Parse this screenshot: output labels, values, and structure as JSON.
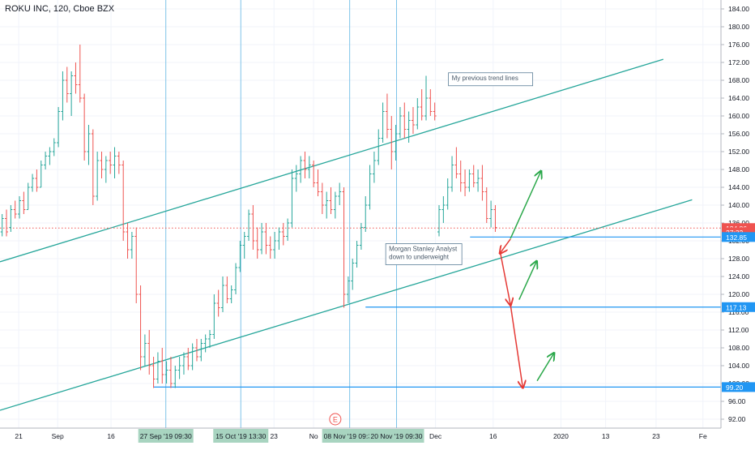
{
  "chart_data": {
    "type": "candlestick",
    "title": "ROKU INC, 120, Cboe BZX",
    "y_range": [
      90,
      186
    ],
    "y_ticks": [
      92,
      96,
      100,
      104,
      108,
      112,
      116,
      120,
      124,
      128,
      132,
      136,
      140,
      144,
      148,
      152,
      156,
      160,
      164,
      168,
      172,
      176,
      180,
      184
    ],
    "x_range": [
      0,
      100
    ],
    "x_labels": [
      {
        "x": 2.6,
        "label": "21"
      },
      {
        "x": 8.0,
        "label": "Sep"
      },
      {
        "x": 15.4,
        "label": "16"
      },
      {
        "x": 38.0,
        "label": "23"
      },
      {
        "x": 43.5,
        "label": "No"
      },
      {
        "x": 60.4,
        "label": "Dec"
      },
      {
        "x": 68.4,
        "label": "16"
      },
      {
        "x": 77.8,
        "label": "2020"
      },
      {
        "x": 84.0,
        "label": "13"
      },
      {
        "x": 91.0,
        "label": "23"
      },
      {
        "x": 97.5,
        "label": "Fe"
      }
    ],
    "highlighted_dates": [
      {
        "x": 23.0,
        "label": "27 Sep '19   09:30"
      },
      {
        "x": 33.4,
        "label": "15 Oct '19   13:30"
      },
      {
        "x": 48.5,
        "label": "08 Nov '19  09:30"
      },
      {
        "x": 55.0,
        "label": "20 Nov '19   09:30"
      }
    ],
    "price_badges": [
      {
        "price": 134.86,
        "label": "134.86",
        "color": "#ef5350"
      },
      {
        "price": 133.9,
        "label": "27:32",
        "color": "#ef5350"
      },
      {
        "price": 132.85,
        "label": "132.85",
        "color": "#2196f3"
      },
      {
        "price": 117.13,
        "label": "117.13",
        "color": "#2196f3"
      },
      {
        "price": 99.2,
        "label": "99.20",
        "color": "#2196f3"
      }
    ],
    "candles": [
      {
        "x": 0.3,
        "o": 134,
        "h": 138,
        "l": 133,
        "c": 137
      },
      {
        "x": 0.9,
        "o": 137,
        "h": 139,
        "l": 133,
        "c": 134
      },
      {
        "x": 1.5,
        "o": 135,
        "h": 140,
        "l": 134,
        "c": 139
      },
      {
        "x": 2.1,
        "o": 139,
        "h": 141,
        "l": 137,
        "c": 138
      },
      {
        "x": 2.7,
        "o": 138,
        "h": 142,
        "l": 137,
        "c": 141
      },
      {
        "x": 3.3,
        "o": 141,
        "h": 143,
        "l": 138,
        "c": 139
      },
      {
        "x": 3.9,
        "o": 139,
        "h": 145,
        "l": 139,
        "c": 144
      },
      {
        "x": 4.5,
        "o": 144,
        "h": 147,
        "l": 143,
        "c": 146
      },
      {
        "x": 5.1,
        "o": 146,
        "h": 148,
        "l": 143,
        "c": 144
      },
      {
        "x": 5.7,
        "o": 144,
        "h": 150,
        "l": 144,
        "c": 149
      },
      {
        "x": 6.3,
        "o": 149,
        "h": 152,
        "l": 148,
        "c": 151
      },
      {
        "x": 6.9,
        "o": 151,
        "h": 153,
        "l": 149,
        "c": 152
      },
      {
        "x": 7.5,
        "o": 152,
        "h": 155,
        "l": 151,
        "c": 154
      },
      {
        "x": 8.1,
        "o": 154,
        "h": 162,
        "l": 153,
        "c": 161
      },
      {
        "x": 8.7,
        "o": 161,
        "h": 170,
        "l": 159,
        "c": 168
      },
      {
        "x": 9.3,
        "o": 168,
        "h": 171,
        "l": 163,
        "c": 165
      },
      {
        "x": 9.9,
        "o": 165,
        "h": 170,
        "l": 160,
        "c": 169
      },
      {
        "x": 10.5,
        "o": 169,
        "h": 172,
        "l": 165,
        "c": 167
      },
      {
        "x": 11.1,
        "o": 167,
        "h": 176,
        "l": 163,
        "c": 164
      },
      {
        "x": 11.7,
        "o": 164,
        "h": 165,
        "l": 150,
        "c": 152
      },
      {
        "x": 12.3,
        "o": 152,
        "h": 158,
        "l": 149,
        "c": 156
      },
      {
        "x": 12.9,
        "o": 156,
        "h": 157,
        "l": 140,
        "c": 142
      },
      {
        "x": 13.5,
        "o": 142,
        "h": 152,
        "l": 141,
        "c": 150
      },
      {
        "x": 14.1,
        "o": 150,
        "h": 152,
        "l": 146,
        "c": 148
      },
      {
        "x": 14.7,
        "o": 148,
        "h": 151,
        "l": 145,
        "c": 150
      },
      {
        "x": 15.3,
        "o": 150,
        "h": 152,
        "l": 147,
        "c": 149
      },
      {
        "x": 15.9,
        "o": 149,
        "h": 153,
        "l": 146,
        "c": 151
      },
      {
        "x": 16.5,
        "o": 151,
        "h": 152,
        "l": 147,
        "c": 149
      },
      {
        "x": 17.1,
        "o": 149,
        "h": 150,
        "l": 132,
        "c": 134
      },
      {
        "x": 17.7,
        "o": 134,
        "h": 136,
        "l": 128,
        "c": 130
      },
      {
        "x": 18.3,
        "o": 130,
        "h": 134,
        "l": 128,
        "c": 133
      },
      {
        "x": 18.9,
        "o": 133,
        "h": 135,
        "l": 118,
        "c": 120
      },
      {
        "x": 19.5,
        "o": 120,
        "h": 122,
        "l": 103,
        "c": 106
      },
      {
        "x": 20.1,
        "o": 106,
        "h": 111,
        "l": 104,
        "c": 109
      },
      {
        "x": 20.7,
        "o": 109,
        "h": 112,
        "l": 102,
        "c": 104
      },
      {
        "x": 21.3,
        "o": 104,
        "h": 106,
        "l": 99,
        "c": 101
      },
      {
        "x": 21.9,
        "o": 101,
        "h": 107,
        "l": 100,
        "c": 105
      },
      {
        "x": 22.5,
        "o": 105,
        "h": 108,
        "l": 100,
        "c": 102
      },
      {
        "x": 23.1,
        "o": 102,
        "h": 105,
        "l": 100,
        "c": 103
      },
      {
        "x": 23.7,
        "o": 103,
        "h": 106,
        "l": 99,
        "c": 100
      },
      {
        "x": 24.3,
        "o": 100,
        "h": 104,
        "l": 99,
        "c": 103
      },
      {
        "x": 24.9,
        "o": 103,
        "h": 106,
        "l": 101,
        "c": 104
      },
      {
        "x": 25.5,
        "o": 104,
        "h": 107,
        "l": 102,
        "c": 106
      },
      {
        "x": 26.1,
        "o": 106,
        "h": 108,
        "l": 103,
        "c": 104
      },
      {
        "x": 26.7,
        "o": 104,
        "h": 109,
        "l": 103,
        "c": 108
      },
      {
        "x": 27.3,
        "o": 108,
        "h": 110,
        "l": 105,
        "c": 106
      },
      {
        "x": 27.9,
        "o": 106,
        "h": 110,
        "l": 105,
        "c": 109
      },
      {
        "x": 28.5,
        "o": 109,
        "h": 111,
        "l": 107,
        "c": 110
      },
      {
        "x": 29.1,
        "o": 110,
        "h": 112,
        "l": 108,
        "c": 111
      },
      {
        "x": 29.7,
        "o": 111,
        "h": 120,
        "l": 110,
        "c": 118
      },
      {
        "x": 30.3,
        "o": 118,
        "h": 121,
        "l": 115,
        "c": 117
      },
      {
        "x": 30.9,
        "o": 117,
        "h": 124,
        "l": 116,
        "c": 122
      },
      {
        "x": 31.5,
        "o": 122,
        "h": 124,
        "l": 118,
        "c": 119
      },
      {
        "x": 32.1,
        "o": 119,
        "h": 122,
        "l": 118,
        "c": 121
      },
      {
        "x": 32.7,
        "o": 121,
        "h": 127,
        "l": 120,
        "c": 126
      },
      {
        "x": 33.3,
        "o": 126,
        "h": 132,
        "l": 125,
        "c": 131
      },
      {
        "x": 33.9,
        "o": 131,
        "h": 134,
        "l": 128,
        "c": 133
      },
      {
        "x": 34.5,
        "o": 133,
        "h": 139,
        "l": 132,
        "c": 138
      },
      {
        "x": 35.1,
        "o": 138,
        "h": 140,
        "l": 130,
        "c": 132
      },
      {
        "x": 35.7,
        "o": 132,
        "h": 135,
        "l": 128,
        "c": 130
      },
      {
        "x": 36.3,
        "o": 130,
        "h": 136,
        "l": 129,
        "c": 134
      },
      {
        "x": 36.9,
        "o": 134,
        "h": 136,
        "l": 129,
        "c": 131
      },
      {
        "x": 37.5,
        "o": 131,
        "h": 133,
        "l": 128,
        "c": 130
      },
      {
        "x": 38.1,
        "o": 130,
        "h": 134,
        "l": 128,
        "c": 132
      },
      {
        "x": 38.7,
        "o": 132,
        "h": 135,
        "l": 130,
        "c": 134
      },
      {
        "x": 39.3,
        "o": 134,
        "h": 136,
        "l": 131,
        "c": 133
      },
      {
        "x": 39.9,
        "o": 133,
        "h": 137,
        "l": 132,
        "c": 136
      },
      {
        "x": 40.5,
        "o": 136,
        "h": 148,
        "l": 135,
        "c": 146
      },
      {
        "x": 41.1,
        "o": 146,
        "h": 149,
        "l": 143,
        "c": 147
      },
      {
        "x": 41.7,
        "o": 147,
        "h": 151,
        "l": 145,
        "c": 150
      },
      {
        "x": 42.3,
        "o": 150,
        "h": 152,
        "l": 146,
        "c": 148
      },
      {
        "x": 42.9,
        "o": 148,
        "h": 151,
        "l": 146,
        "c": 149
      },
      {
        "x": 43.5,
        "o": 149,
        "h": 150,
        "l": 144,
        "c": 145
      },
      {
        "x": 44.1,
        "o": 145,
        "h": 148,
        "l": 142,
        "c": 143
      },
      {
        "x": 44.7,
        "o": 143,
        "h": 145,
        "l": 138,
        "c": 140
      },
      {
        "x": 45.3,
        "o": 140,
        "h": 143,
        "l": 137,
        "c": 141
      },
      {
        "x": 45.9,
        "o": 141,
        "h": 144,
        "l": 138,
        "c": 139
      },
      {
        "x": 46.5,
        "o": 139,
        "h": 143,
        "l": 137,
        "c": 142
      },
      {
        "x": 47.1,
        "o": 142,
        "h": 145,
        "l": 140,
        "c": 143
      },
      {
        "x": 47.7,
        "o": 143,
        "h": 144,
        "l": 117,
        "c": 120
      },
      {
        "x": 48.3,
        "o": 120,
        "h": 124,
        "l": 118,
        "c": 123
      },
      {
        "x": 48.9,
        "o": 123,
        "h": 128,
        "l": 121,
        "c": 127
      },
      {
        "x": 49.5,
        "o": 127,
        "h": 132,
        "l": 126,
        "c": 131
      },
      {
        "x": 50.1,
        "o": 131,
        "h": 136,
        "l": 130,
        "c": 135
      },
      {
        "x": 50.7,
        "o": 135,
        "h": 142,
        "l": 134,
        "c": 140
      },
      {
        "x": 51.3,
        "o": 140,
        "h": 149,
        "l": 139,
        "c": 147
      },
      {
        "x": 51.9,
        "o": 147,
        "h": 152,
        "l": 145,
        "c": 150
      },
      {
        "x": 52.5,
        "o": 150,
        "h": 157,
        "l": 149,
        "c": 155
      },
      {
        "x": 53.1,
        "o": 155,
        "h": 163,
        "l": 154,
        "c": 161
      },
      {
        "x": 53.7,
        "o": 161,
        "h": 165,
        "l": 155,
        "c": 157
      },
      {
        "x": 54.3,
        "o": 157,
        "h": 160,
        "l": 148,
        "c": 152
      },
      {
        "x": 54.9,
        "o": 152,
        "h": 158,
        "l": 150,
        "c": 156
      },
      {
        "x": 55.5,
        "o": 156,
        "h": 162,
        "l": 155,
        "c": 160
      },
      {
        "x": 56.1,
        "o": 160,
        "h": 163,
        "l": 155,
        "c": 157
      },
      {
        "x": 56.7,
        "o": 157,
        "h": 161,
        "l": 154,
        "c": 159
      },
      {
        "x": 57.3,
        "o": 159,
        "h": 162,
        "l": 156,
        "c": 158
      },
      {
        "x": 57.9,
        "o": 158,
        "h": 164,
        "l": 157,
        "c": 162
      },
      {
        "x": 58.5,
        "o": 162,
        "h": 166,
        "l": 159,
        "c": 160
      },
      {
        "x": 59.1,
        "o": 160,
        "h": 169,
        "l": 159,
        "c": 164
      },
      {
        "x": 59.7,
        "o": 164,
        "h": 166,
        "l": 160,
        "c": 161
      },
      {
        "x": 60.3,
        "o": 161,
        "h": 163,
        "l": 159,
        "c": 160
      },
      {
        "x": 60.9,
        "o": 134,
        "h": 140,
        "l": 133,
        "c": 139
      },
      {
        "x": 61.5,
        "o": 139,
        "h": 142,
        "l": 136,
        "c": 140
      },
      {
        "x": 62.1,
        "o": 140,
        "h": 146,
        "l": 139,
        "c": 144
      },
      {
        "x": 62.7,
        "o": 144,
        "h": 151,
        "l": 143,
        "c": 149
      },
      {
        "x": 63.3,
        "o": 149,
        "h": 153,
        "l": 146,
        "c": 147
      },
      {
        "x": 63.9,
        "o": 147,
        "h": 150,
        "l": 143,
        "c": 145
      },
      {
        "x": 64.5,
        "o": 145,
        "h": 148,
        "l": 142,
        "c": 144
      },
      {
        "x": 65.1,
        "o": 144,
        "h": 148,
        "l": 143,
        "c": 147
      },
      {
        "x": 65.7,
        "o": 147,
        "h": 149,
        "l": 144,
        "c": 145
      },
      {
        "x": 66.3,
        "o": 145,
        "h": 148,
        "l": 143,
        "c": 146
      },
      {
        "x": 66.9,
        "o": 146,
        "h": 149,
        "l": 141,
        "c": 143
      },
      {
        "x": 67.5,
        "o": 143,
        "h": 144,
        "l": 136,
        "c": 137
      },
      {
        "x": 68.1,
        "o": 137,
        "h": 141,
        "l": 135,
        "c": 139
      },
      {
        "x": 68.7,
        "o": 139,
        "h": 140,
        "l": 134,
        "c": 135
      }
    ],
    "trend_lines": [
      {
        "name": "upper-channel",
        "x1": 0,
        "y1": 127.3,
        "x2": 92,
        "y2": 172.7,
        "color": "#26a69a"
      },
      {
        "name": "lower-channel",
        "x1": 0,
        "y1": 94.0,
        "x2": 96,
        "y2": 141.2,
        "color": "#26a69a"
      }
    ],
    "horizontal_levels": [
      {
        "x_start": 65.2,
        "price": 132.85,
        "color": "#2196f3"
      },
      {
        "x_start": 50.7,
        "price": 117.13,
        "color": "#2196f3"
      },
      {
        "x_start": 21.3,
        "price": 99.2,
        "color": "#2196f3"
      }
    ],
    "current_price_line": {
      "price": 134.86,
      "color": "#ef5350"
    },
    "arrows": [
      {
        "x1": 70.8,
        "y1": 132.4,
        "x2": 69.4,
        "y2": 129.3,
        "color": "#e53935"
      },
      {
        "x1": 69.4,
        "y1": 129.3,
        "x2": 70.8,
        "y2": 117.7,
        "color": "#e53935"
      },
      {
        "x1": 70.8,
        "y1": 117.7,
        "x2": 72.5,
        "y2": 99.2,
        "color": "#e53935"
      },
      {
        "x1": 70.8,
        "y1": 132.5,
        "x2": 75.0,
        "y2": 147.5,
        "color": "#2ba84a"
      },
      {
        "x1": 72.0,
        "y1": 118.8,
        "x2": 74.4,
        "y2": 127.3,
        "color": "#2ba84a"
      },
      {
        "x1": 74.5,
        "y1": 100.6,
        "x2": 76.8,
        "y2": 106.7,
        "color": "#2ba84a"
      }
    ],
    "annotations": [
      {
        "x": 62.2,
        "price": 167.5,
        "text": "My previous trend lines"
      },
      {
        "x": 53.5,
        "price": 131.0,
        "text": "Morgan Stanley Analyst down to underweight"
      }
    ],
    "event_marker": {
      "x": 46.5,
      "label": "E"
    }
  }
}
